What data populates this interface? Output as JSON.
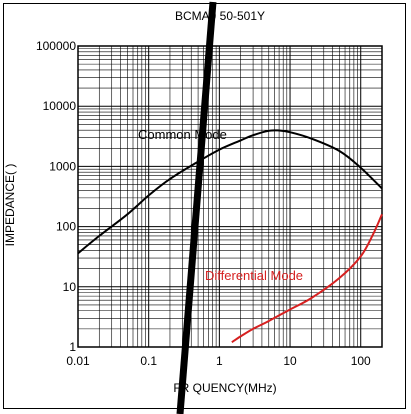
{
  "chart_data": {
    "type": "line",
    "title": "BCMA9 50-501Y",
    "xlabel": "FR QUENCY(MHz)",
    "ylabel": "IMPEDANCE(  )",
    "x_scale": "log",
    "y_scale": "log",
    "xlim": [
      0.01,
      200
    ],
    "ylim": [
      1,
      100000
    ],
    "grid": true,
    "x_ticks": [
      "0.01",
      "0.1",
      "1",
      "10",
      "100"
    ],
    "y_ticks": [
      "1",
      "10",
      "100",
      "1000",
      "10000",
      "100000"
    ],
    "series": [
      {
        "name": "Common Mode",
        "color": "#000000",
        "x": [
          0.01,
          0.02,
          0.05,
          0.1,
          0.2,
          0.5,
          1,
          2,
          3,
          5,
          7,
          10,
          20,
          50,
          100,
          200
        ],
        "y": [
          36,
          70,
          160,
          330,
          620,
          1200,
          1900,
          2700,
          3300,
          3900,
          3950,
          3700,
          2900,
          1800,
          950,
          430
        ]
      },
      {
        "name": "Differential Mode",
        "color": "#d62020",
        "x": [
          1.5,
          2,
          3,
          5,
          10,
          20,
          50,
          100,
          150,
          200
        ],
        "y": [
          1.2,
          1.5,
          2.0,
          2.7,
          4.2,
          6.5,
          14,
          32,
          75,
          160
        ]
      }
    ]
  }
}
